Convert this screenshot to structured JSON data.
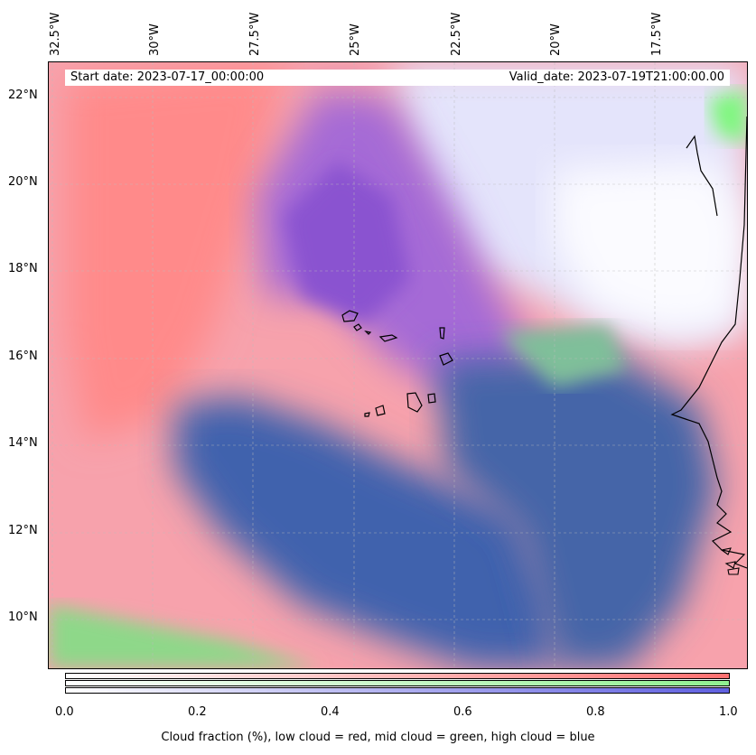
{
  "map": {
    "start_date": "Start date: 2023-07-17_00:00:00",
    "valid_date": "Valid_date: 2023-07-19T21:00:00.00",
    "longitude_labels": [
      "32.5°W",
      "30°W",
      "27.5°W",
      "25°W",
      "22.5°W",
      "20°W",
      "17.5°W"
    ],
    "latitude_labels": [
      "22°N",
      "20°N",
      "18°N",
      "16°N",
      "14°N",
      "12°N",
      "10°N"
    ],
    "extent": {
      "lon_min": -32.6,
      "lon_max": -15.3,
      "lat_min": 8.8,
      "lat_max": 22.8
    },
    "colors": {
      "low_cloud": "#ff7f7f",
      "mid_cloud": "#80f080",
      "high_cloud": "#7070e0",
      "dense_overlap": "#3a5fa8"
    }
  },
  "colorbar": {
    "ticks": [
      "0.0",
      "0.2",
      "0.4",
      "0.6",
      "0.8",
      "1.0"
    ],
    "label": "Cloud fraction (%), low cloud = red, mid cloud = green, high cloud = blue",
    "rows": [
      {
        "name": "low",
        "color_end": "#ff7070"
      },
      {
        "name": "mid",
        "color_end": "#90f090"
      },
      {
        "name": "high",
        "color_end": "#6060e0"
      }
    ]
  }
}
